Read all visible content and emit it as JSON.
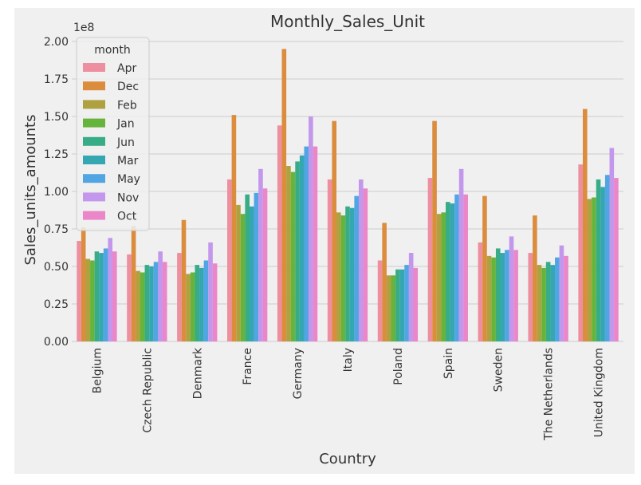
{
  "chart_data": {
    "type": "bar",
    "title": "Monthly_Sales_Unit",
    "xlabel": "Country",
    "ylabel": "Sales_units_amounts",
    "y_offset_label": "1e8",
    "ylim": [
      0,
      2.0
    ],
    "yticks": [
      "0.00",
      "0.25",
      "0.50",
      "0.75",
      "1.00",
      "1.25",
      "1.50",
      "1.75",
      "2.00"
    ],
    "grid": true,
    "legend": {
      "title": "month",
      "placement": "top-left"
    },
    "categories": [
      "Belgium",
      "Czech Republic",
      "Denmark",
      "France",
      "Germany",
      "Italy",
      "Poland",
      "Spain",
      "Sweden",
      "The Netherlands",
      "United Kingdom"
    ],
    "series": [
      {
        "name": "Apr",
        "color": "#ee8f9f",
        "values": [
          0.67,
          0.58,
          0.59,
          1.08,
          1.44,
          1.08,
          0.54,
          1.09,
          0.66,
          0.59,
          1.18
        ]
      },
      {
        "name": "Dec",
        "color": "#db8c3d",
        "values": [
          0.76,
          0.77,
          0.81,
          1.51,
          1.95,
          1.47,
          0.79,
          1.47,
          0.97,
          0.84,
          1.55
        ]
      },
      {
        "name": "Feb",
        "color": "#b0a140",
        "values": [
          0.55,
          0.47,
          0.45,
          0.91,
          1.17,
          0.86,
          0.44,
          0.85,
          0.57,
          0.51,
          0.95
        ]
      },
      {
        "name": "Jan",
        "color": "#66b43b",
        "values": [
          0.54,
          0.46,
          0.46,
          0.85,
          1.13,
          0.84,
          0.44,
          0.86,
          0.56,
          0.49,
          0.96
        ]
      },
      {
        "name": "Jun",
        "color": "#37ac86",
        "values": [
          0.6,
          0.51,
          0.51,
          0.98,
          1.2,
          0.9,
          0.48,
          0.93,
          0.62,
          0.53,
          1.08
        ]
      },
      {
        "name": "Mar",
        "color": "#35a7b2",
        "values": [
          0.59,
          0.5,
          0.49,
          0.9,
          1.24,
          0.89,
          0.48,
          0.92,
          0.59,
          0.51,
          1.03
        ]
      },
      {
        "name": "May",
        "color": "#52a5e3",
        "values": [
          0.62,
          0.53,
          0.54,
          0.99,
          1.3,
          0.97,
          0.51,
          0.98,
          0.61,
          0.56,
          1.11
        ]
      },
      {
        "name": "Nov",
        "color": "#c297ec",
        "values": [
          0.69,
          0.6,
          0.66,
          1.15,
          1.5,
          1.08,
          0.59,
          1.15,
          0.7,
          0.64,
          1.29
        ]
      },
      {
        "name": "Oct",
        "color": "#eb86c9",
        "values": [
          0.6,
          0.53,
          0.52,
          1.02,
          1.3,
          1.02,
          0.49,
          0.98,
          0.61,
          0.57,
          1.09
        ]
      }
    ]
  }
}
